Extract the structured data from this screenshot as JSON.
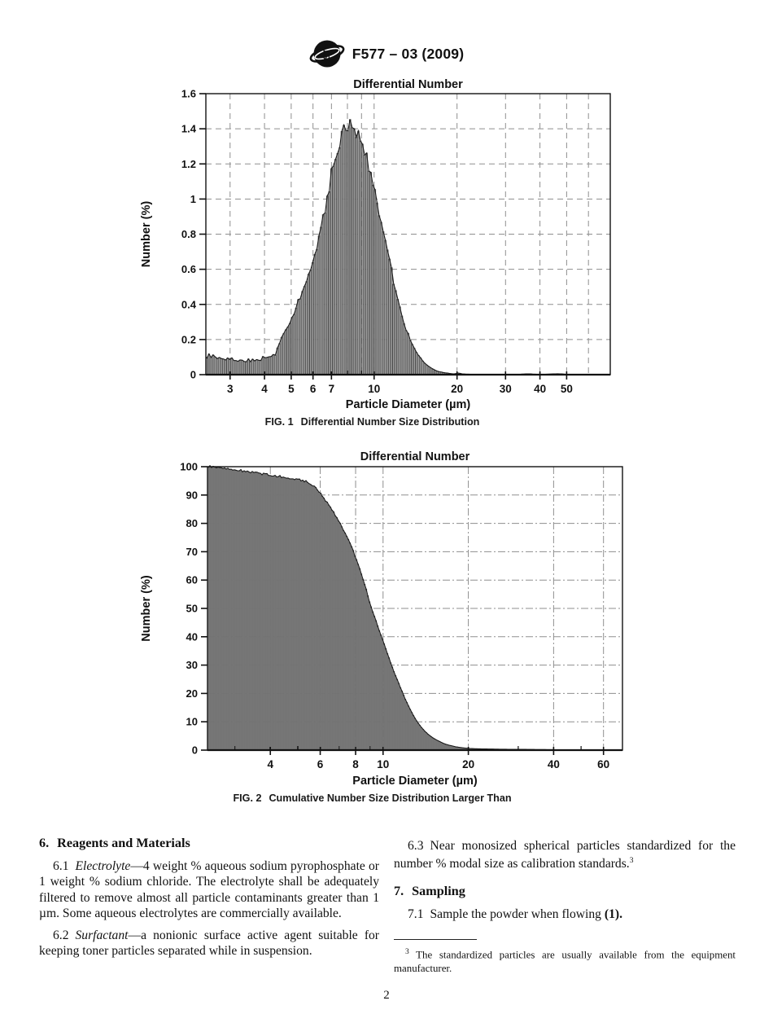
{
  "header": {
    "logo": "astm-logo",
    "code": "F577 – 03 (2009)"
  },
  "page_number": "2",
  "colors": {
    "text": "#111111",
    "bar_fill": "#9e9e9e",
    "bar_stroke": "#3d3d3d",
    "envelope": "#1a1a1a",
    "grid": "#8f8f8f",
    "axis": "#111111",
    "reference_red": "#c02020"
  },
  "chart_data": [
    {
      "type": "bar",
      "title": "Differential Number",
      "caption_label": "FIG. 1",
      "caption_text": "Differential Number Size Distribution",
      "xlabel": "Particle Diameter (µm)",
      "ylabel": "Number (%)",
      "x_scale": "log",
      "xlim": [
        2.45,
        72
      ],
      "ylim": [
        0,
        1.6
      ],
      "grid": true,
      "grid_dash": "7,5",
      "legend": "none",
      "y_ticks": [
        {
          "v": 0,
          "label": "0"
        },
        {
          "v": 0.2,
          "label": "0.2"
        },
        {
          "v": 0.4,
          "label": "0.4"
        },
        {
          "v": 0.6,
          "label": "0.6"
        },
        {
          "v": 0.8,
          "label": "0.8"
        },
        {
          "v": 1,
          "label": "1"
        },
        {
          "v": 1.2,
          "label": "1.2"
        },
        {
          "v": 1.4,
          "label": "1.4"
        },
        {
          "v": 1.6,
          "label": "1.6"
        }
      ],
      "x_major_ticks": [
        {
          "v": 3,
          "label": "3"
        },
        {
          "v": 4,
          "label": "4"
        },
        {
          "v": 5,
          "label": "5"
        },
        {
          "v": 6,
          "label": "6"
        },
        {
          "v": 7,
          "label": "7"
        },
        {
          "v": 10,
          "label": "10"
        },
        {
          "v": 20,
          "label": "20"
        },
        {
          "v": 30,
          "label": "30"
        },
        {
          "v": 40,
          "label": "40"
        },
        {
          "v": 50,
          "label": "50"
        }
      ],
      "x_minor_ticks": [
        8,
        9
      ],
      "x_grid": [
        3,
        4,
        5,
        6,
        7,
        8,
        9,
        10,
        20,
        30,
        40,
        50,
        60
      ],
      "bars_end": 55,
      "jitter": {
        "plateau_below": 4.4,
        "plateau_amp": 0.14,
        "base_amp": 0.035
      },
      "points": [
        [
          2.45,
          0.1
        ],
        [
          2.55,
          0.106
        ],
        [
          2.7,
          0.099
        ],
        [
          2.85,
          0.088
        ],
        [
          3.0,
          0.095
        ],
        [
          3.15,
          0.081
        ],
        [
          3.3,
          0.086
        ],
        [
          3.45,
          0.076
        ],
        [
          3.6,
          0.086
        ],
        [
          3.75,
          0.08
        ],
        [
          3.9,
          0.092
        ],
        [
          4.0,
          0.1
        ],
        [
          4.1,
          0.091
        ],
        [
          4.2,
          0.096
        ],
        [
          4.35,
          0.12
        ],
        [
          4.5,
          0.16
        ],
        [
          4.7,
          0.24
        ],
        [
          5.0,
          0.31
        ],
        [
          5.25,
          0.4
        ],
        [
          5.5,
          0.48
        ],
        [
          5.75,
          0.57
        ],
        [
          6.0,
          0.66
        ],
        [
          6.25,
          0.76
        ],
        [
          6.5,
          0.88
        ],
        [
          6.75,
          1.0
        ],
        [
          7.0,
          1.14
        ],
        [
          7.25,
          1.25
        ],
        [
          7.5,
          1.33
        ],
        [
          7.75,
          1.38
        ],
        [
          8.0,
          1.4
        ],
        [
          8.3,
          1.42
        ],
        [
          8.6,
          1.4
        ],
        [
          9.0,
          1.34
        ],
        [
          9.5,
          1.22
        ],
        [
          10.0,
          1.07
        ],
        [
          10.5,
          0.91
        ],
        [
          11.0,
          0.75
        ],
        [
          11.5,
          0.61
        ],
        [
          12.0,
          0.47
        ],
        [
          12.5,
          0.36
        ],
        [
          13.0,
          0.27
        ],
        [
          13.5,
          0.2
        ],
        [
          14.0,
          0.15
        ],
        [
          14.5,
          0.11
        ],
        [
          15.0,
          0.08
        ],
        [
          15.5,
          0.057
        ],
        [
          16.0,
          0.04
        ],
        [
          16.5,
          0.028
        ],
        [
          17.0,
          0.019
        ],
        [
          18.0,
          0.011
        ],
        [
          19.0,
          0.006
        ],
        [
          19.6,
          0.004
        ],
        [
          20.2,
          0.01
        ],
        [
          20.8,
          0.005
        ],
        [
          21.5,
          0.003
        ],
        [
          23.0,
          0.002
        ],
        [
          26.0,
          0.001
        ],
        [
          30.0,
          0.002
        ],
        [
          33.0,
          0.001
        ],
        [
          36.0,
          0.005
        ],
        [
          38.0,
          0.003
        ],
        [
          40.0,
          0.001
        ],
        [
          44.0,
          0.004
        ],
        [
          47.0,
          0.005
        ],
        [
          50.0,
          0.002
        ],
        [
          55.0,
          0.001
        ]
      ]
    },
    {
      "type": "bar",
      "title": "Differential Number",
      "caption_label": "FIG. 2",
      "caption_text": "Cumulative Number Size Distribution Larger Than",
      "xlabel": "Particle Diameter (µm)",
      "ylabel": "Number (%)",
      "x_scale": "log",
      "xlim": [
        2.4,
        70
      ],
      "ylim": [
        0,
        100
      ],
      "grid": true,
      "grid_dash": "9,3,2,3",
      "legend": "none",
      "y_ticks": [
        {
          "v": 0,
          "label": "0"
        },
        {
          "v": 10,
          "label": "10"
        },
        {
          "v": 20,
          "label": "20"
        },
        {
          "v": 30,
          "label": "30"
        },
        {
          "v": 40,
          "label": "40"
        },
        {
          "v": 50,
          "label": "50"
        },
        {
          "v": 60,
          "label": "60"
        },
        {
          "v": 70,
          "label": "70"
        },
        {
          "v": 80,
          "label": "80"
        },
        {
          "v": 90,
          "label": "90"
        },
        {
          "v": 100,
          "label": "100"
        }
      ],
      "x_major_ticks": [
        {
          "v": 4,
          "label": "4"
        },
        {
          "v": 6,
          "label": "6"
        },
        {
          "v": 8,
          "label": "8"
        },
        {
          "v": 10,
          "label": "10"
        },
        {
          "v": 20,
          "label": "20"
        },
        {
          "v": 40,
          "label": "40"
        },
        {
          "v": 60,
          "label": "60"
        }
      ],
      "x_minor_ticks": [
        3,
        5,
        7,
        9,
        30,
        50
      ],
      "x_grid": [
        4,
        6,
        8,
        10,
        20,
        40,
        60
      ],
      "bars_end": 50,
      "jitter": {
        "plateau_below": 0,
        "plateau_amp": 0,
        "base_amp": 0.004
      },
      "points": [
        [
          2.4,
          100.0
        ],
        [
          2.6,
          99.8
        ],
        [
          2.8,
          99.4
        ],
        [
          3.0,
          98.9
        ],
        [
          3.2,
          98.5
        ],
        [
          3.5,
          98.0
        ],
        [
          3.8,
          97.4
        ],
        [
          4.0,
          97.0
        ],
        [
          4.3,
          96.6
        ],
        [
          4.6,
          96.2
        ],
        [
          5.0,
          95.6
        ],
        [
          5.3,
          94.9
        ],
        [
          5.6,
          93.8
        ],
        [
          5.9,
          91.5
        ],
        [
          6.2,
          88.8
        ],
        [
          6.5,
          86.0
        ],
        [
          6.8,
          82.8
        ],
        [
          7.1,
          79.5
        ],
        [
          7.4,
          76.0
        ],
        [
          7.7,
          72.2
        ],
        [
          8.0,
          68.0
        ],
        [
          8.3,
          63.5
        ],
        [
          8.6,
          58.8
        ],
        [
          9.0,
          51.5
        ],
        [
          9.3,
          47.5
        ],
        [
          9.6,
          43.5
        ],
        [
          10.0,
          38.5
        ],
        [
          10.4,
          33.5
        ],
        [
          10.8,
          29.0
        ],
        [
          11.2,
          25.0
        ],
        [
          11.6,
          21.3
        ],
        [
          12.0,
          17.8
        ],
        [
          12.4,
          14.8
        ],
        [
          12.8,
          12.2
        ],
        [
          13.2,
          10.0
        ],
        [
          13.6,
          8.2
        ],
        [
          14.0,
          6.8
        ],
        [
          14.5,
          5.4
        ],
        [
          15.0,
          4.3
        ],
        [
          15.5,
          3.5
        ],
        [
          16.0,
          2.8
        ],
        [
          16.5,
          2.2
        ],
        [
          17.0,
          1.8
        ],
        [
          17.5,
          1.5
        ],
        [
          18.0,
          1.2
        ],
        [
          19.0,
          0.85
        ],
        [
          20.0,
          0.6
        ],
        [
          21.0,
          0.5
        ],
        [
          23.0,
          0.4
        ],
        [
          26.0,
          0.32
        ],
        [
          30.0,
          0.27
        ],
        [
          34.0,
          0.22
        ],
        [
          38.0,
          0.18
        ],
        [
          42.0,
          0.14
        ],
        [
          46.0,
          0.1
        ],
        [
          50.0,
          0.07
        ]
      ]
    }
  ],
  "sections": {
    "s6": {
      "num": "6.",
      "title": "Reagents and Materials"
    },
    "p61": {
      "num": "6.1",
      "term": "Electrolyte",
      "text": "—4 weight % aqueous sodium pyrophosphate or 1 weight % sodium chloride. The electrolyte shall be adequately filtered to remove almost all particle contaminants greater than 1 µm. Some aqueous electrolytes are commercially available."
    },
    "p62": {
      "num": "6.2",
      "term": "Surfactant",
      "text": "—a nonionic surface active agent suitable for keeping toner particles separated while in suspension."
    },
    "p63": {
      "num": "6.3",
      "text": "Near monosized spherical particles standardized for the number % modal size as calibration standards.",
      "footnote_ref": "3"
    },
    "s7": {
      "num": "7.",
      "title": "Sampling"
    },
    "p71": {
      "num": "7.1",
      "text": "Sample the powder when flowing ",
      "ref_open": "(",
      "ref": "1",
      "ref_close": ")."
    }
  },
  "footnote": {
    "marker": "3",
    "text": " The standardized particles are usually available from the equipment manufacturer."
  }
}
